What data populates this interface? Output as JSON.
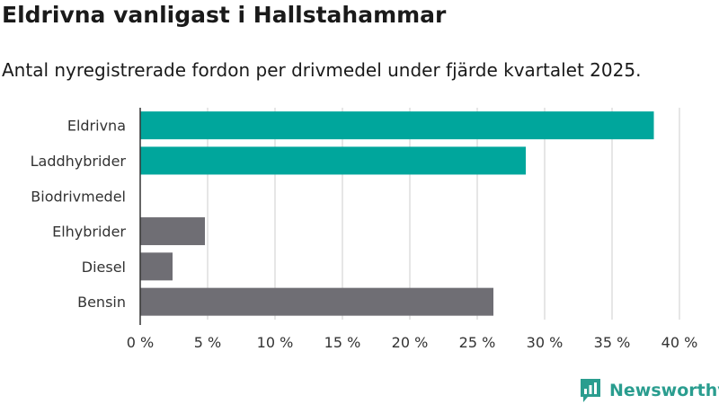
{
  "header": {
    "title": "Eldrivna vanligast i Hallstahammar",
    "subtitle": "Antal nyregistrerade fordon per drivmedel under fjärde kvartalet 2025."
  },
  "brand": {
    "name": "Newsworthy",
    "logo_icon": "newsworthy-logo-icon",
    "color": "#2a9d8f"
  },
  "colors": {
    "highlight": "#00a69c",
    "default": "#6f6e74",
    "grid": "#dddddd",
    "axis": "#333333"
  },
  "chart_data": {
    "type": "bar",
    "orientation": "horizontal",
    "categories": [
      "Eldrivna",
      "Laddhybrider",
      "Biodrivmedel",
      "Elhybrider",
      "Diesel",
      "Bensin"
    ],
    "values": [
      38.1,
      28.6,
      0,
      4.8,
      2.4,
      26.2
    ],
    "highlight": [
      true,
      true,
      true,
      false,
      false,
      false
    ],
    "x_ticks": [
      0,
      5,
      10,
      15,
      20,
      25,
      30,
      35,
      40
    ],
    "x_tick_labels": [
      "0 %",
      "5 %",
      "10 %",
      "15 %",
      "20 %",
      "25 %",
      "30 %",
      "35 %",
      "40 %"
    ],
    "xlim": [
      0,
      40
    ],
    "grid": true,
    "legend": "none"
  }
}
